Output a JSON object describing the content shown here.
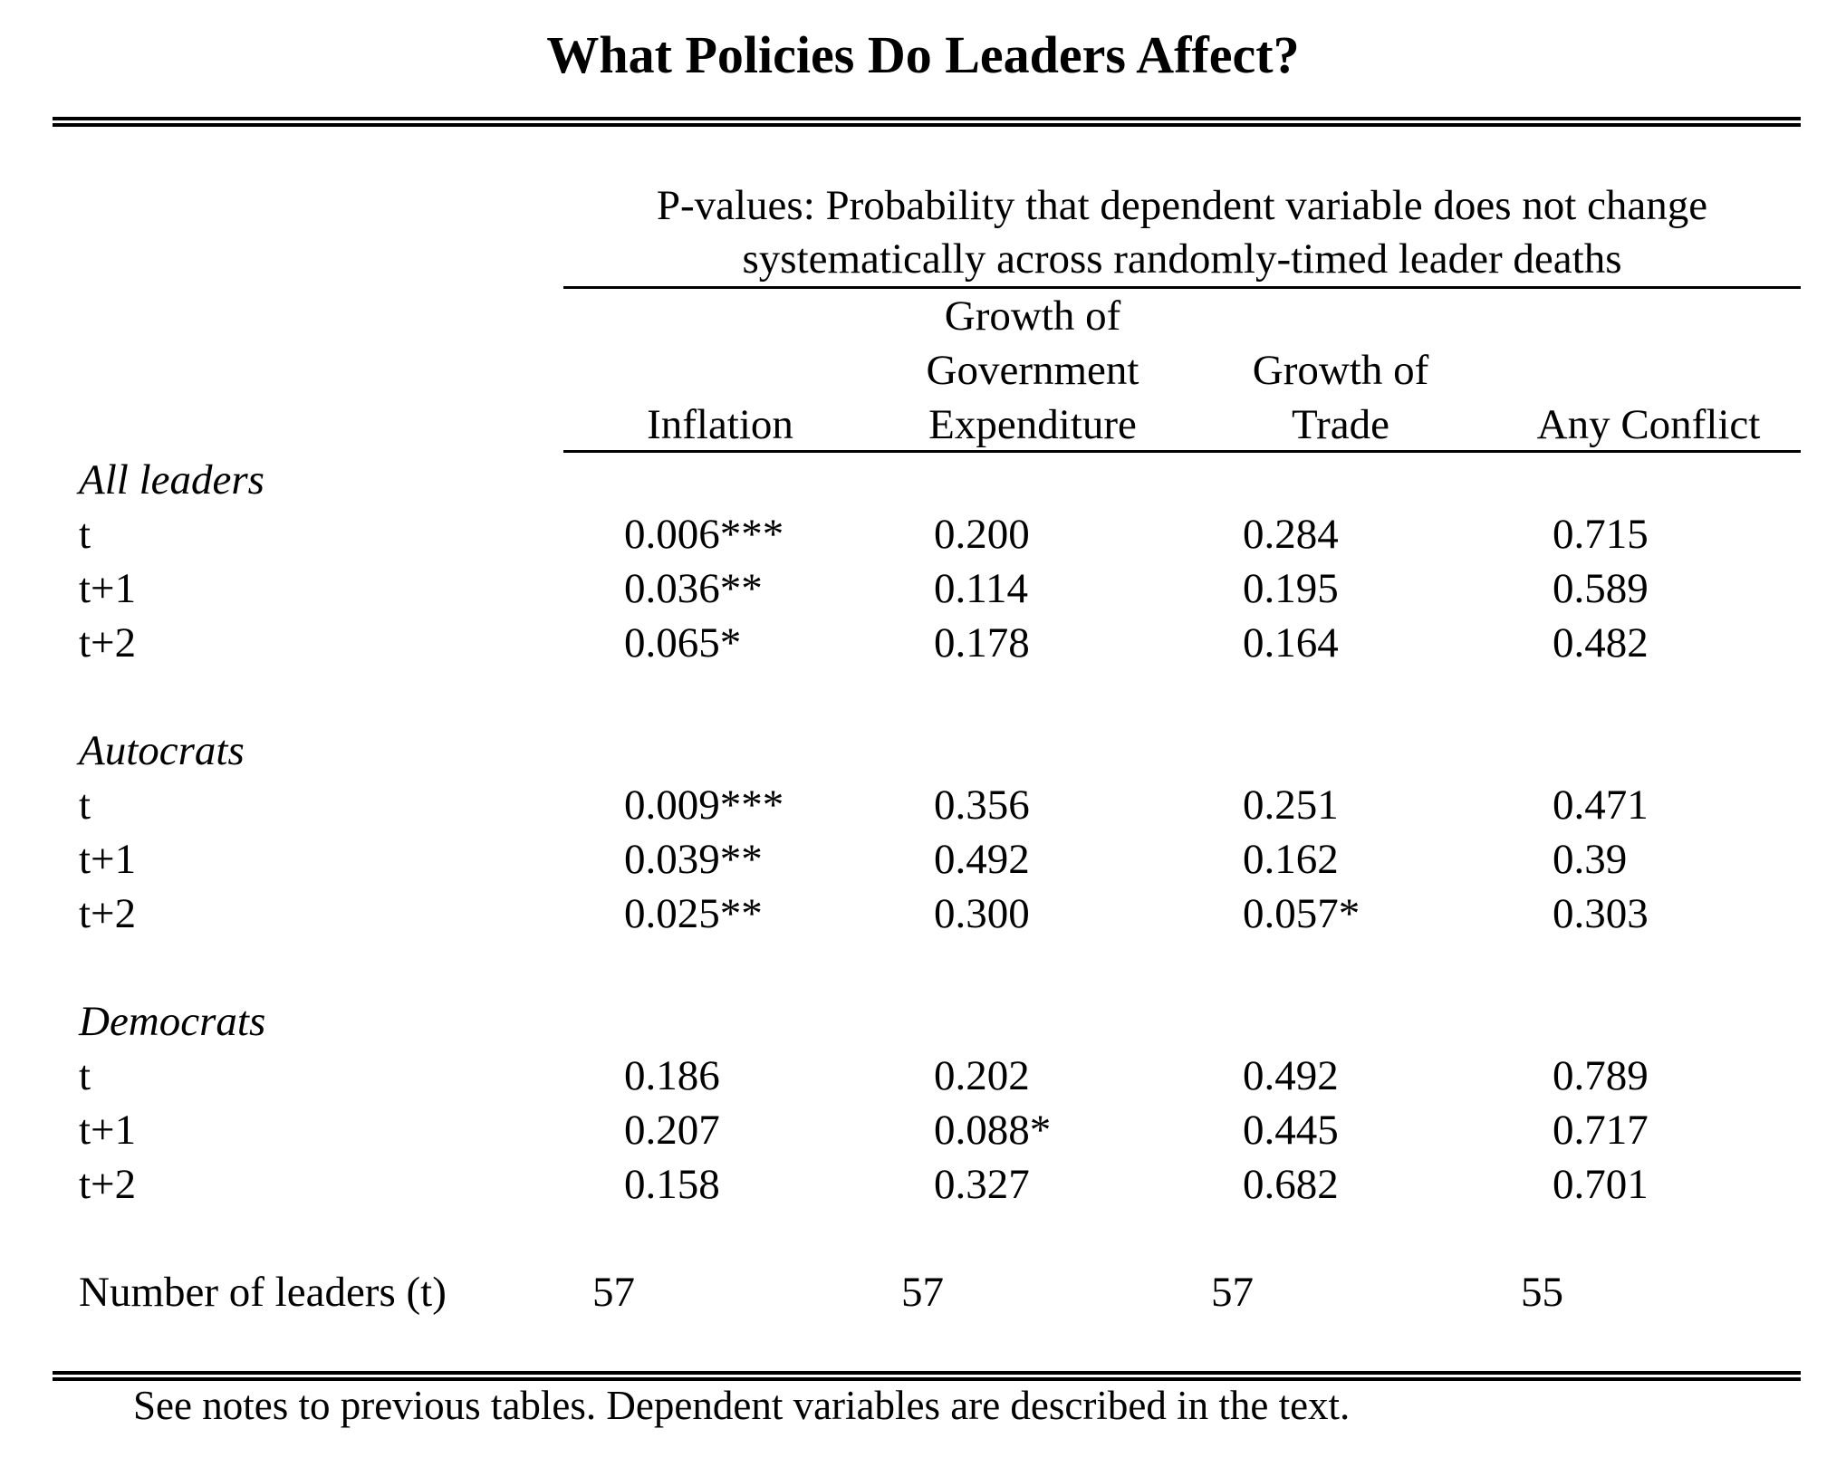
{
  "title": "What Policies Do Leaders Affect?",
  "header": {
    "spanner_line1": "P-values:  Probability that dependent variable does not change",
    "spanner_line2": "systematically across randomly-timed leader deaths",
    "columns": [
      {
        "lines": [
          "Inflation"
        ]
      },
      {
        "lines": [
          "Growth of",
          "Government",
          "Expenditure"
        ]
      },
      {
        "lines": [
          "Growth of",
          "Trade"
        ]
      },
      {
        "lines": [
          "Any Conflict"
        ]
      }
    ]
  },
  "groups": [
    {
      "name": "All leaders",
      "rows": [
        {
          "label": "t",
          "values": [
            "0.006***",
            "0.200",
            "0.284",
            "0.715"
          ]
        },
        {
          "label": "t+1",
          "values": [
            "0.036**",
            "0.114",
            "0.195",
            "0.589"
          ]
        },
        {
          "label": "t+2",
          "values": [
            "0.065*",
            "0.178",
            "0.164",
            "0.482"
          ]
        }
      ]
    },
    {
      "name": "Autocrats",
      "rows": [
        {
          "label": "t",
          "values": [
            "0.009***",
            "0.356",
            "0.251",
            "0.471"
          ]
        },
        {
          "label": "t+1",
          "values": [
            "0.039**",
            "0.492",
            "0.162",
            "0.39"
          ]
        },
        {
          "label": "t+2",
          "values": [
            "0.025**",
            "0.300",
            "0.057*",
            "0.303"
          ]
        }
      ]
    },
    {
      "name": "Democrats",
      "rows": [
        {
          "label": "t",
          "values": [
            "0.186",
            "0.202",
            "0.492",
            "0.789"
          ]
        },
        {
          "label": "t+1",
          "values": [
            "0.207",
            "0.088*",
            "0.445",
            "0.717"
          ]
        },
        {
          "label": "t+2",
          "values": [
            "0.158",
            "0.327",
            "0.682",
            "0.701"
          ]
        }
      ]
    }
  ],
  "leaders_row": {
    "label": "Number of leaders (t)",
    "values": [
      "57",
      "57",
      "57",
      "55"
    ]
  },
  "note": "See notes to previous tables.  Dependent variables are described in the text."
}
